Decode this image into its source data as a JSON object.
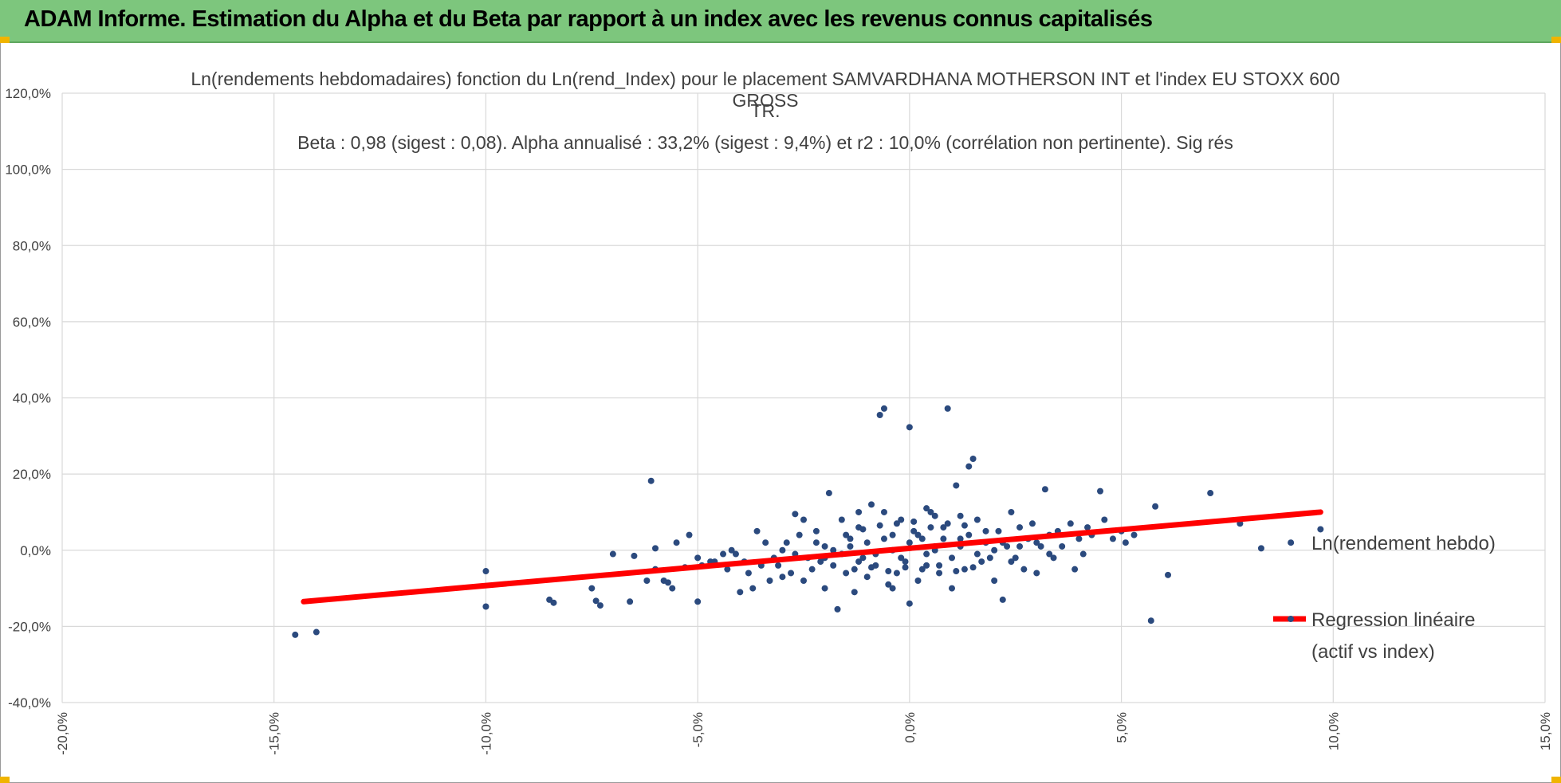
{
  "banner": {
    "title": "ADAM Informe. Estimation du Alpha et du Beta par rapport à un index avec les revenus connus capitalisés",
    "color": "#7dc67d"
  },
  "chart_data": {
    "type": "scatter",
    "title_line1": "Ln(rendements hebdomadaires) fonction du Ln(rend_Index) pour le placement SAMVARDHANA MOTHERSON INT et l'index EU STOXX 600 GROSS",
    "title_line2": "TR.",
    "subtitle": "Beta : 0,98 (sigest : 0,08). Alpha annualisé : 33,2% (sigest : 9,4%) et r2 : 10,0% (corrélation non pertinente). Sig rés",
    "xlim": [
      -0.2,
      0.15
    ],
    "ylim": [
      -0.4,
      1.2
    ],
    "x_ticks": [
      "-20,0%",
      "-15,0%",
      "-10,0%",
      "-5,0%",
      "0,0%",
      "5,0%",
      "10,0%",
      "15,0%"
    ],
    "y_ticks": [
      "-40,0%",
      "-20,0%",
      "0,0%",
      "20,0%",
      "40,0%",
      "60,0%",
      "80,0%",
      "100,0%",
      "120,0%"
    ],
    "grid": true,
    "legend_position": "right",
    "series": [
      {
        "name": "Ln(rendement hebdo)",
        "color": "#2b4a7e",
        "points": [
          [
            -0.145,
            -0.222
          ],
          [
            -0.14,
            -0.215
          ],
          [
            -0.1,
            -0.148
          ],
          [
            -0.1,
            -0.055
          ],
          [
            -0.085,
            -0.13
          ],
          [
            -0.084,
            -0.138
          ],
          [
            -0.075,
            -0.1
          ],
          [
            -0.074,
            -0.133
          ],
          [
            -0.073,
            -0.145
          ],
          [
            -0.07,
            -0.01
          ],
          [
            -0.066,
            -0.135
          ],
          [
            -0.065,
            -0.015
          ],
          [
            -0.062,
            -0.08
          ],
          [
            -0.061,
            0.182
          ],
          [
            -0.06,
            -0.05
          ],
          [
            -0.06,
            0.005
          ],
          [
            -0.058,
            -0.08
          ],
          [
            -0.057,
            -0.085
          ],
          [
            -0.056,
            -0.1
          ],
          [
            -0.055,
            0.02
          ],
          [
            -0.053,
            -0.045
          ],
          [
            -0.052,
            0.04
          ],
          [
            -0.05,
            -0.135
          ],
          [
            -0.05,
            -0.02
          ],
          [
            -0.049,
            -0.04
          ],
          [
            -0.047,
            -0.03
          ],
          [
            -0.046,
            -0.03
          ],
          [
            -0.044,
            -0.01
          ],
          [
            -0.043,
            -0.05
          ],
          [
            -0.042,
            0.0
          ],
          [
            -0.041,
            -0.01
          ],
          [
            -0.04,
            -0.11
          ],
          [
            -0.039,
            -0.03
          ],
          [
            -0.038,
            -0.06
          ],
          [
            -0.037,
            -0.1
          ],
          [
            -0.036,
            0.05
          ],
          [
            -0.035,
            -0.04
          ],
          [
            -0.034,
            0.02
          ],
          [
            -0.033,
            -0.08
          ],
          [
            -0.032,
            -0.02
          ],
          [
            -0.031,
            -0.04
          ],
          [
            -0.03,
            -0.07
          ],
          [
            -0.029,
            0.02
          ],
          [
            -0.028,
            -0.06
          ],
          [
            -0.027,
            0.095
          ],
          [
            -0.026,
            0.04
          ],
          [
            -0.025,
            -0.08
          ],
          [
            -0.025,
            0.08
          ],
          [
            -0.024,
            -0.02
          ],
          [
            -0.023,
            -0.05
          ],
          [
            -0.022,
            0.05
          ],
          [
            -0.021,
            -0.03
          ],
          [
            -0.02,
            -0.1
          ],
          [
            -0.02,
            0.01
          ],
          [
            -0.019,
            0.15
          ],
          [
            -0.018,
            -0.04
          ],
          [
            -0.017,
            -0.155
          ],
          [
            -0.016,
            0.08
          ],
          [
            -0.015,
            -0.06
          ],
          [
            -0.014,
            0.03
          ],
          [
            -0.013,
            -0.11
          ],
          [
            -0.012,
            0.06
          ],
          [
            -0.011,
            -0.02
          ],
          [
            -0.01,
            -0.07
          ],
          [
            -0.009,
            0.12
          ],
          [
            -0.008,
            -0.01
          ],
          [
            -0.007,
            0.355
          ],
          [
            -0.006,
            0.372
          ],
          [
            -0.005,
            -0.09
          ],
          [
            -0.004,
            0.04
          ],
          [
            -0.003,
            -0.06
          ],
          [
            -0.002,
            0.08
          ],
          [
            -0.001,
            -0.03
          ],
          [
            0.0,
            0.323
          ],
          [
            0.0,
            -0.14
          ],
          [
            0.001,
            0.05
          ],
          [
            0.002,
            -0.08
          ],
          [
            0.003,
            0.03
          ],
          [
            0.004,
            -0.04
          ],
          [
            0.005,
            0.1
          ],
          [
            0.006,
            0.01
          ],
          [
            0.007,
            -0.06
          ],
          [
            0.008,
            0.06
          ],
          [
            0.009,
            0.372
          ],
          [
            0.01,
            -0.1
          ],
          [
            0.011,
            0.17
          ],
          [
            0.012,
            0.03
          ],
          [
            0.013,
            -0.05
          ],
          [
            0.014,
            0.22
          ],
          [
            0.015,
            0.24
          ],
          [
            0.016,
            0.08
          ],
          [
            0.017,
            -0.03
          ],
          [
            0.018,
            0.02
          ],
          [
            0.02,
            -0.08
          ],
          [
            0.021,
            0.05
          ],
          [
            0.022,
            -0.13
          ],
          [
            0.023,
            0.01
          ],
          [
            0.024,
            0.1
          ],
          [
            0.025,
            -0.02
          ],
          [
            0.026,
            0.06
          ],
          [
            0.027,
            -0.05
          ],
          [
            0.028,
            0.03
          ],
          [
            0.029,
            0.07
          ],
          [
            0.03,
            -0.06
          ],
          [
            0.031,
            0.01
          ],
          [
            0.032,
            0.16
          ],
          [
            0.033,
            0.04
          ],
          [
            0.034,
            -0.02
          ],
          [
            0.035,
            0.05
          ],
          [
            0.036,
            0.01
          ],
          [
            0.038,
            0.07
          ],
          [
            0.039,
            -0.05
          ],
          [
            0.04,
            0.03
          ],
          [
            0.041,
            -0.01
          ],
          [
            0.042,
            0.06
          ],
          [
            0.043,
            0.04
          ],
          [
            0.045,
            0.155
          ],
          [
            0.046,
            0.08
          ],
          [
            0.048,
            0.03
          ],
          [
            0.05,
            0.05
          ],
          [
            0.051,
            0.02
          ],
          [
            0.053,
            0.04
          ],
          [
            0.057,
            -0.185
          ],
          [
            0.058,
            0.115
          ],
          [
            0.061,
            -0.065
          ],
          [
            0.071,
            0.15
          ],
          [
            0.078,
            0.07
          ],
          [
            0.083,
            0.005
          ],
          [
            0.09,
            0.02
          ],
          [
            0.097,
            0.055
          ],
          [
            -0.02,
            -0.02
          ],
          [
            -0.018,
            0.0
          ],
          [
            -0.016,
            -0.01
          ],
          [
            -0.014,
            0.01
          ],
          [
            -0.012,
            -0.03
          ],
          [
            -0.01,
            0.02
          ],
          [
            -0.008,
            -0.04
          ],
          [
            -0.006,
            0.03
          ],
          [
            -0.004,
            0.0
          ],
          [
            -0.002,
            -0.02
          ],
          [
            0.0,
            0.02
          ],
          [
            0.002,
            0.04
          ],
          [
            0.004,
            -0.01
          ],
          [
            0.006,
            0.0
          ],
          [
            0.008,
            0.03
          ],
          [
            0.01,
            -0.02
          ],
          [
            0.012,
            0.01
          ],
          [
            0.014,
            0.04
          ],
          [
            0.016,
            -0.01
          ],
          [
            0.018,
            0.05
          ],
          [
            0.02,
            0.0
          ],
          [
            0.022,
            0.02
          ],
          [
            0.024,
            -0.03
          ],
          [
            0.026,
            0.01
          ],
          [
            -0.015,
            0.04
          ],
          [
            -0.011,
            0.055
          ],
          [
            -0.007,
            0.065
          ],
          [
            -0.003,
            0.07
          ],
          [
            0.001,
            0.075
          ],
          [
            0.005,
            0.06
          ],
          [
            0.009,
            0.07
          ],
          [
            0.013,
            0.065
          ],
          [
            -0.013,
            -0.05
          ],
          [
            -0.009,
            -0.045
          ],
          [
            -0.005,
            -0.055
          ],
          [
            -0.001,
            -0.045
          ],
          [
            0.003,
            -0.05
          ],
          [
            0.007,
            -0.04
          ],
          [
            0.011,
            -0.055
          ],
          [
            0.015,
            -0.045
          ],
          [
            -0.03,
            0.0
          ],
          [
            -0.027,
            -0.01
          ],
          [
            0.03,
            0.02
          ],
          [
            0.033,
            -0.01
          ],
          [
            -0.022,
            0.02
          ],
          [
            0.019,
            -0.02
          ],
          [
            0.004,
            0.11
          ],
          [
            -0.004,
            -0.1
          ],
          [
            0.006,
            0.09
          ],
          [
            -0.006,
            0.1
          ],
          [
            0.012,
            0.09
          ],
          [
            -0.012,
            0.1
          ]
        ]
      },
      {
        "name": "Regression linéaire (actif vs index)",
        "legend_line1": "Regression linéaire",
        "legend_line2": "(actif vs index)",
        "color": "#ff0000",
        "line": [
          [
            -0.143,
            -0.135
          ],
          [
            0.097,
            0.1
          ]
        ]
      }
    ]
  }
}
